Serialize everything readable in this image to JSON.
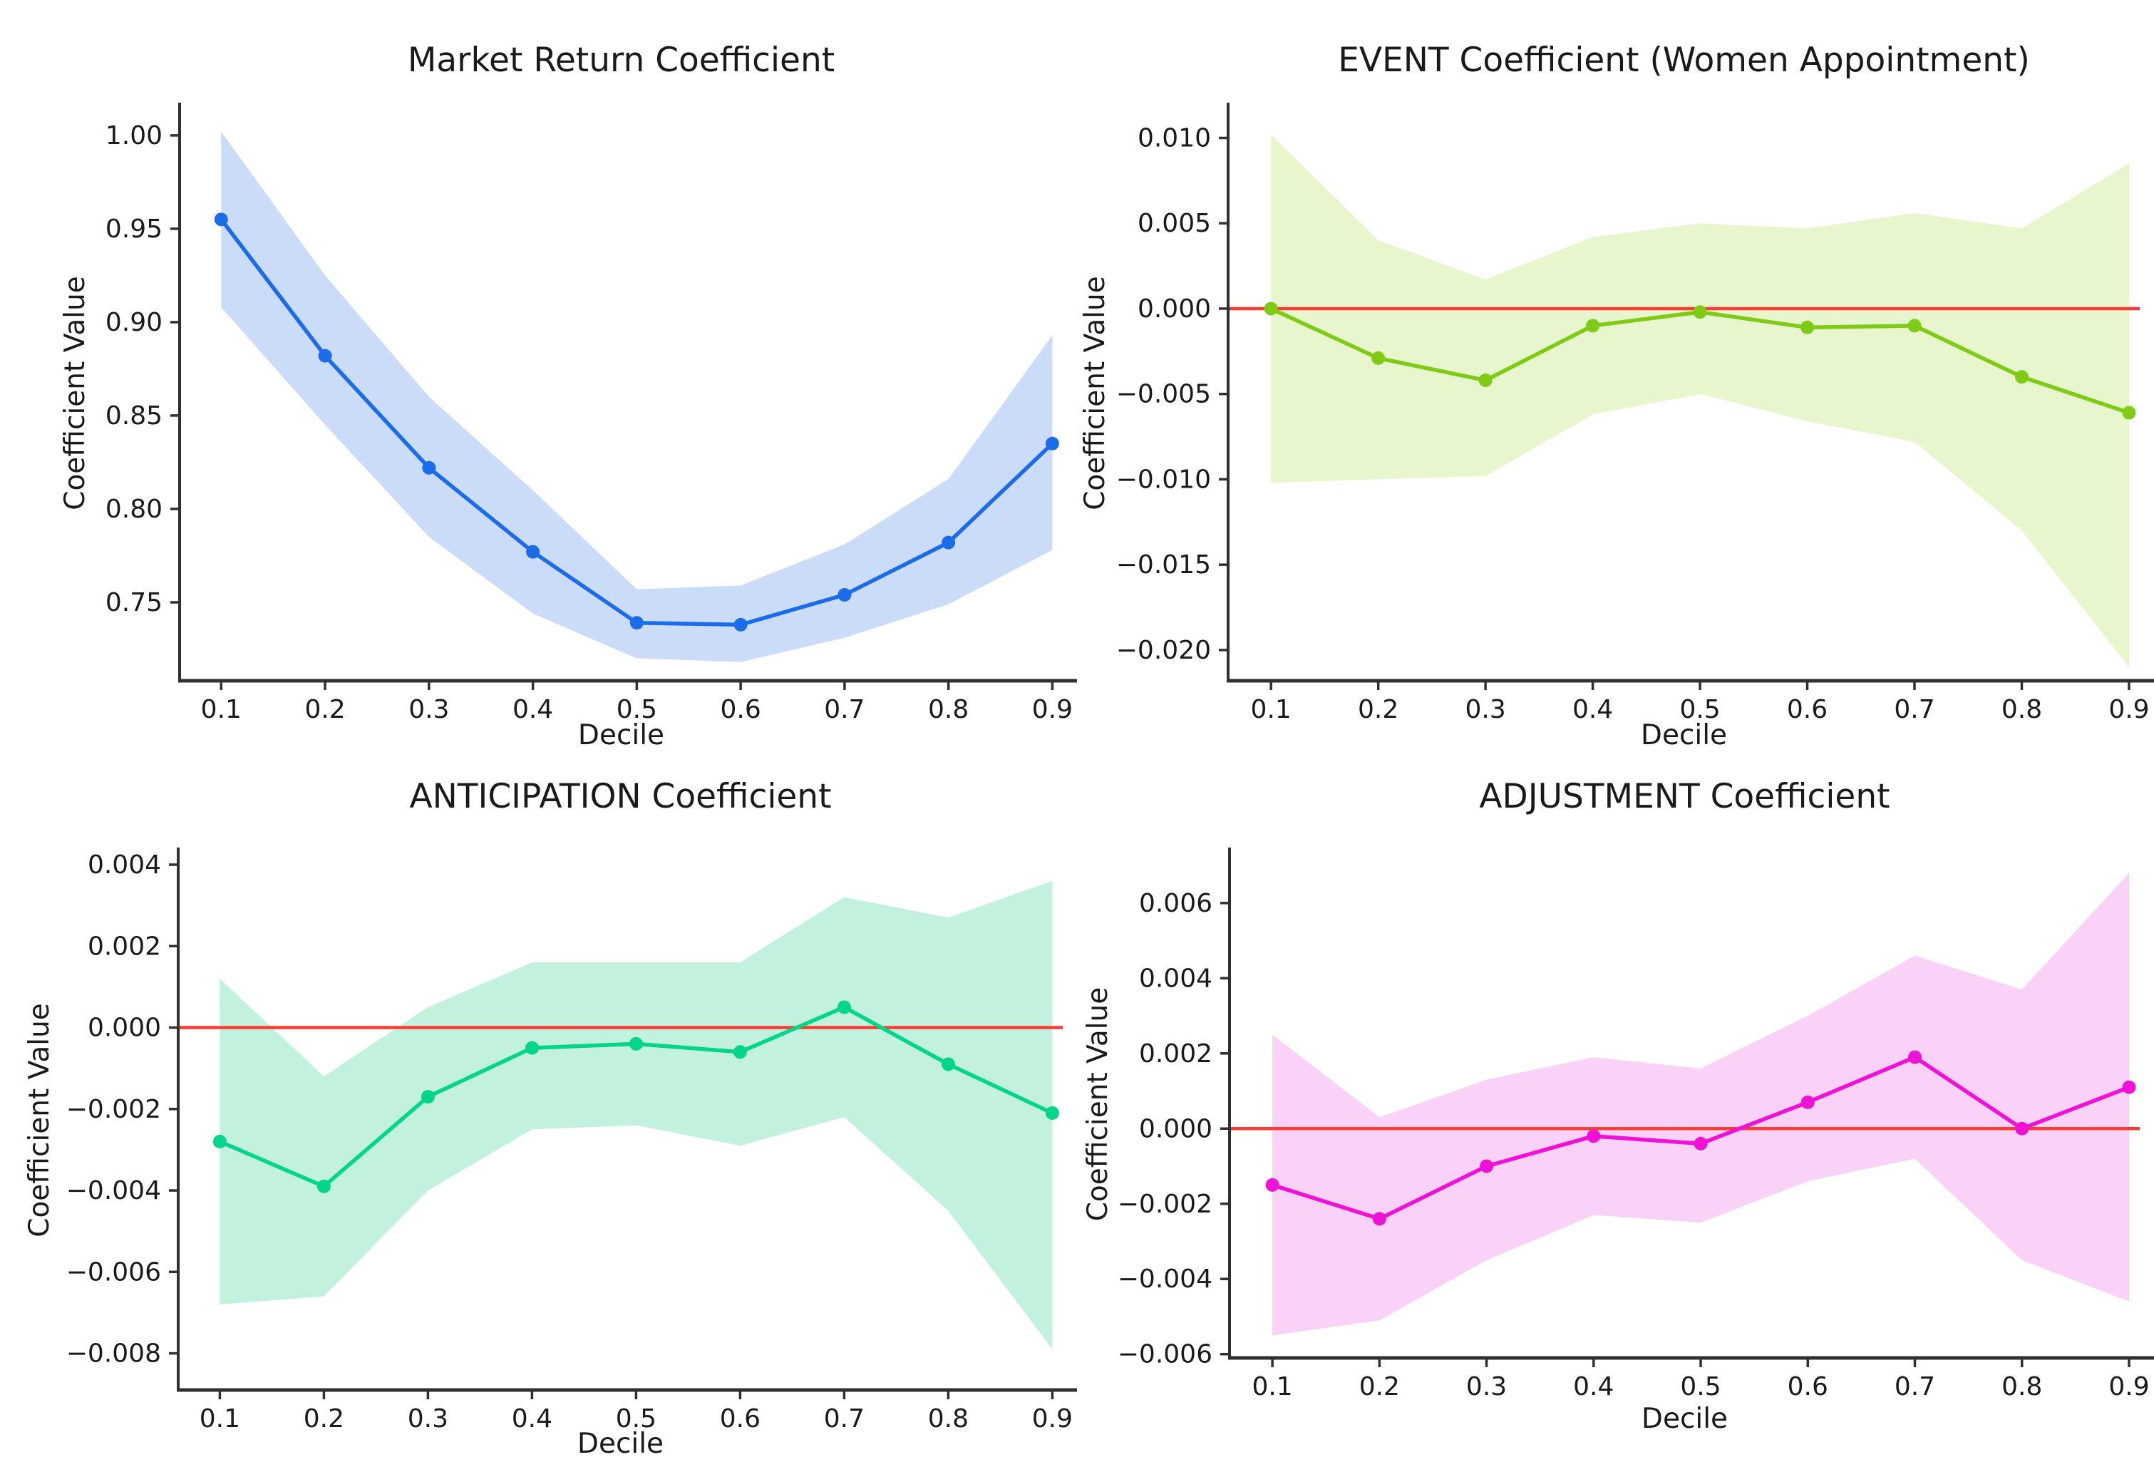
{
  "figure": {
    "background": "#ffffff",
    "axis_color": "#303030",
    "text_color": "#1a1a1a",
    "zero_line_color": "#fa3c35",
    "xlabel": "Decile",
    "ylabel": "Coefficient Value"
  },
  "chart_data": [
    {
      "id": "market-return",
      "type": "line",
      "title": "Market Return Coefficient",
      "xlabel": "Decile",
      "ylabel": "Coefficient Value",
      "x": [
        0.1,
        0.2,
        0.3,
        0.4,
        0.5,
        0.6,
        0.7,
        0.8,
        0.9
      ],
      "xtick_labels": [
        "0.1",
        "0.2",
        "0.3",
        "0.4",
        "0.5",
        "0.6",
        "0.7",
        "0.8",
        "0.9"
      ],
      "series": [
        {
          "name": "coefficient",
          "values": [
            0.955,
            0.882,
            0.822,
            0.777,
            0.739,
            0.738,
            0.754,
            0.782,
            0.835
          ]
        },
        {
          "name": "ci_upper",
          "values": [
            1.002,
            0.925,
            0.86,
            0.81,
            0.757,
            0.759,
            0.781,
            0.816,
            0.893
          ]
        },
        {
          "name": "ci_lower",
          "values": [
            0.908,
            0.845,
            0.785,
            0.744,
            0.72,
            0.718,
            0.731,
            0.749,
            0.778
          ]
        }
      ],
      "ytick_values": [
        1.0,
        0.95,
        0.9,
        0.85,
        0.8,
        0.75
      ],
      "ytick_labels": [
        "1.00",
        "0.95",
        "0.90",
        "0.85",
        "0.80",
        "0.75"
      ],
      "ylim": [
        0.708,
        1.016
      ],
      "xlim": [
        0.06,
        0.91
      ],
      "zero_line": false,
      "grid": false,
      "legend": "none",
      "line_color": "#1a6ceb",
      "band_color": "#cbdcf8"
    },
    {
      "id": "event",
      "type": "line",
      "title": "EVENT Coefficient (Women Appointment)",
      "xlabel": "Decile",
      "ylabel": "Coefficient Value",
      "x": [
        0.1,
        0.2,
        0.3,
        0.4,
        0.5,
        0.6,
        0.7,
        0.8,
        0.9
      ],
      "xtick_labels": [
        "0.1",
        "0.2",
        "0.3",
        "0.4",
        "0.5",
        "0.6",
        "0.7",
        "0.8",
        "0.9"
      ],
      "series": [
        {
          "name": "coefficient",
          "values": [
            0.0,
            -0.0029,
            -0.0042,
            -0.001,
            -0.0002,
            -0.0011,
            -0.001,
            -0.004,
            -0.0061
          ]
        },
        {
          "name": "ci_upper",
          "values": [
            0.0102,
            0.004,
            0.0017,
            0.0042,
            0.005,
            0.0047,
            0.0056,
            0.0047,
            0.0085
          ]
        },
        {
          "name": "ci_lower",
          "values": [
            -0.0102,
            -0.01,
            -0.0098,
            -0.0062,
            -0.005,
            -0.0066,
            -0.0078,
            -0.013,
            -0.021
          ]
        }
      ],
      "ytick_values": [
        0.01,
        0.005,
        0.0,
        -0.005,
        -0.01,
        -0.015,
        -0.02
      ],
      "ytick_labels": [
        "0.010",
        "0.005",
        "0.000",
        "−0.005",
        "−0.010",
        "−0.015",
        "−0.020"
      ],
      "ylim": [
        -0.0218,
        0.0119
      ],
      "xlim": [
        0.06,
        0.91
      ],
      "zero_line": true,
      "grid": false,
      "legend": "none",
      "line_color": "#7ecb16",
      "band_color": "#e7f6cd"
    },
    {
      "id": "anticipation",
      "type": "line",
      "title": "ANTICIPATION Coefficient",
      "xlabel": "Decile",
      "ylabel": "Coefficient Value",
      "x": [
        0.1,
        0.2,
        0.3,
        0.4,
        0.5,
        0.6,
        0.7,
        0.8,
        0.9
      ],
      "xtick_labels": [
        "0.1",
        "0.2",
        "0.3",
        "0.4",
        "0.5",
        "0.6",
        "0.7",
        "0.8",
        "0.9"
      ],
      "series": [
        {
          "name": "coefficient",
          "values": [
            -0.0028,
            -0.0039,
            -0.0017,
            -0.0005,
            -0.0004,
            -0.0006,
            0.0005,
            -0.0009,
            -0.0021
          ]
        },
        {
          "name": "ci_upper",
          "values": [
            0.0012,
            -0.0012,
            0.0005,
            0.0016,
            0.0016,
            0.0016,
            0.0032,
            0.0027,
            0.0036
          ]
        },
        {
          "name": "ci_lower",
          "values": [
            -0.0068,
            -0.0066,
            -0.004,
            -0.0025,
            -0.0024,
            -0.0029,
            -0.0022,
            -0.0045,
            -0.0079
          ]
        }
      ],
      "ytick_values": [
        0.004,
        0.002,
        0.0,
        -0.002,
        -0.004,
        -0.006,
        -0.008
      ],
      "ytick_labels": [
        "0.004",
        "0.002",
        "0.000",
        "−0.002",
        "−0.004",
        "−0.006",
        "−0.008"
      ],
      "ylim": [
        -0.0089,
        0.00435
      ],
      "xlim": [
        0.06,
        0.91
      ],
      "zero_line": true,
      "grid": false,
      "legend": "none",
      "line_color": "#01d589",
      "band_color": "#c2f2dd"
    },
    {
      "id": "adjustment",
      "type": "line",
      "title": "ADJUSTMENT Coefficient",
      "xlabel": "Decile",
      "ylabel": "Coefficient Value",
      "x": [
        0.1,
        0.2,
        0.3,
        0.4,
        0.5,
        0.6,
        0.7,
        0.8,
        0.9
      ],
      "xtick_labels": [
        "0.1",
        "0.2",
        "0.3",
        "0.4",
        "0.5",
        "0.6",
        "0.7",
        "0.8",
        "0.9"
      ],
      "series": [
        {
          "name": "coefficient",
          "values": [
            -0.0015,
            -0.0024,
            -0.001,
            -0.0002,
            -0.0004,
            0.0007,
            0.0019,
            0.0,
            0.0011
          ]
        },
        {
          "name": "ci_upper",
          "values": [
            0.0025,
            0.0003,
            0.0013,
            0.0019,
            0.0016,
            0.003,
            0.0046,
            0.0037,
            0.0068
          ]
        },
        {
          "name": "ci_lower",
          "values": [
            -0.0055,
            -0.0051,
            -0.0035,
            -0.0023,
            -0.0025,
            -0.0014,
            -0.0008,
            -0.0035,
            -0.0046
          ]
        }
      ],
      "ytick_values": [
        0.006,
        0.004,
        0.002,
        0.0,
        -0.002,
        -0.004,
        -0.006
      ],
      "ytick_labels": [
        "0.006",
        "0.004",
        "0.002",
        "0.000",
        "−0.002",
        "−0.004",
        "−0.006"
      ],
      "ylim": [
        -0.0061,
        0.0074
      ],
      "xlim": [
        0.06,
        0.91
      ],
      "zero_line": true,
      "grid": false,
      "legend": "none",
      "line_color": "#ef12d6",
      "band_color": "#fad2f7"
    }
  ]
}
